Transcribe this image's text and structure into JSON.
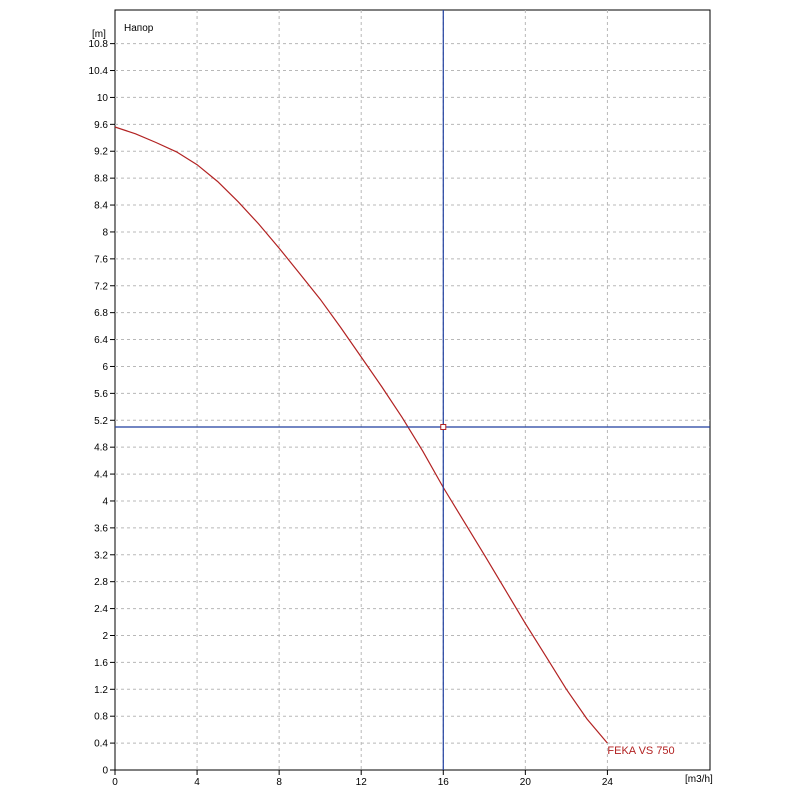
{
  "chart_data": {
    "type": "line",
    "title": "Напор",
    "ylabel": "[m]",
    "xlabel": "[m3/h]",
    "xlim": [
      0,
      29
    ],
    "ylim": [
      0,
      11.3
    ],
    "x_ticks": [
      0,
      4,
      8,
      12,
      16,
      20,
      24
    ],
    "x_tick_labels": [
      "0",
      "4",
      "8",
      "12",
      "16",
      "20",
      "24"
    ],
    "y_ticks": [
      0,
      0.4,
      0.8,
      1.2,
      1.6,
      2,
      2.4,
      2.8,
      3.2,
      3.6,
      4,
      4.4,
      4.8,
      5.2,
      5.6,
      6,
      6.4,
      6.8,
      7.2,
      7.6,
      8,
      8.4,
      8.8,
      9.2,
      9.6,
      10,
      10.4,
      10.8
    ],
    "y_tick_labels": [
      "0",
      "0.4",
      "0.8",
      "1.2",
      "1.6",
      "2",
      "2.4",
      "2.8",
      "3.2",
      "3.6",
      "4",
      "4.4",
      "4.8",
      "5.2",
      "5.6",
      "6",
      "6.4",
      "6.8",
      "7.2",
      "7.6",
      "8",
      "8.4",
      "8.8",
      "9.2",
      "9.6",
      "10",
      "10.4",
      "10.8"
    ],
    "grid": true,
    "series": [
      {
        "name": "FEKA VS 750",
        "color": "#b22222",
        "x": [
          0,
          1,
          2,
          3,
          4,
          5,
          6,
          7,
          8,
          9,
          10,
          11,
          12,
          13,
          14,
          15,
          16,
          17,
          18,
          19,
          20,
          21,
          22,
          23,
          24
        ],
        "y": [
          9.56,
          9.46,
          9.33,
          9.19,
          9.0,
          8.75,
          8.45,
          8.12,
          7.76,
          7.38,
          7.0,
          6.58,
          6.14,
          5.7,
          5.24,
          4.74,
          4.2,
          3.7,
          3.2,
          2.69,
          2.18,
          1.69,
          1.2,
          0.76,
          0.4
        ]
      }
    ],
    "crosshair": {
      "x": 16,
      "y": 5.1,
      "color": "#1f3f9f"
    }
  }
}
